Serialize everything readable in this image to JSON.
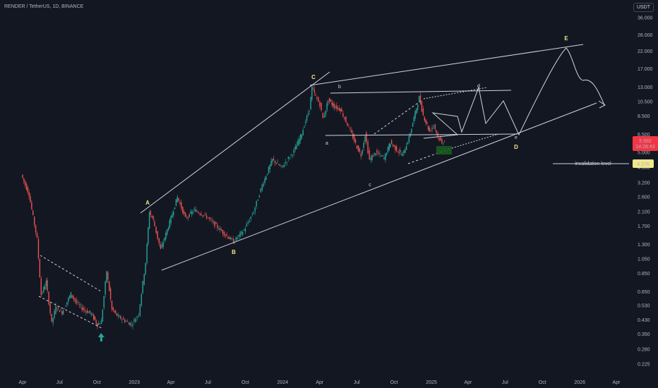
{
  "header": {
    "title": "RENDER / TetherUS, 1D, BINANCE",
    "currency": "USDT"
  },
  "chart_data": {
    "type": "line",
    "title": "RENDER / TetherUS, 1D, BINANCE",
    "yscale": "log",
    "grid": false,
    "y_ticks": [
      "36.000",
      "28.000",
      "22.000",
      "17.000",
      "13.000",
      "10.500",
      "8.500",
      "6.500",
      "5.000",
      "4.000",
      "3.200",
      "2.600",
      "2.100",
      "1.700",
      "1.300",
      "1.050",
      "0.850",
      "0.650",
      "0.530",
      "0.430",
      "0.350",
      "0.280",
      "0.225"
    ],
    "x_ticks": [
      "Apr",
      "Jul",
      "Oct",
      "2023",
      "Apr",
      "Jul",
      "Oct",
      "2024",
      "Apr",
      "Jul",
      "Oct",
      "2025",
      "Apr",
      "Jul",
      "Oct",
      "2026",
      "Apr"
    ],
    "current_price": "5.992",
    "countdown": "14:28:43",
    "invalidation": {
      "label": "invalidation level",
      "price": "4.276"
    },
    "wave_labels": [
      "A",
      "B",
      "C",
      "D",
      "E"
    ],
    "subwave_labels": [
      "a",
      "b",
      "c",
      "d",
      "e"
    ],
    "series": [
      {
        "values": [
          [
            "2022-04-01",
            3.6
          ],
          [
            "2022-04-20",
            2.7
          ],
          [
            "2022-05-10",
            1.4
          ],
          [
            "2022-05-20",
            0.62
          ],
          [
            "2022-06-01",
            0.75
          ],
          [
            "2022-06-15",
            0.41
          ],
          [
            "2022-06-25",
            0.52
          ],
          [
            "2022-07-10",
            0.48
          ],
          [
            "2022-08-01",
            0.63
          ],
          [
            "2022-08-15",
            0.55
          ],
          [
            "2022-09-01",
            0.5
          ],
          [
            "2022-09-20",
            0.47
          ],
          [
            "2022-10-05",
            0.4
          ],
          [
            "2022-10-15",
            0.42
          ],
          [
            "2022-10-28",
            0.88
          ],
          [
            "2022-11-10",
            0.5
          ],
          [
            "2022-11-25",
            0.45
          ],
          [
            "2022-12-15",
            0.42
          ],
          [
            "2022-12-28",
            0.4
          ],
          [
            "2023-01-15",
            0.47
          ],
          [
            "2023-02-01",
            1.0
          ],
          [
            "2023-02-10",
            2.1
          ],
          [
            "2023-02-20",
            1.85
          ],
          [
            "2023-03-10",
            1.2
          ],
          [
            "2023-04-01",
            1.8
          ],
          [
            "2023-04-20",
            2.6
          ],
          [
            "2023-05-10",
            1.9
          ],
          [
            "2023-06-01",
            2.15
          ],
          [
            "2023-07-01",
            1.95
          ],
          [
            "2023-08-10",
            1.55
          ],
          [
            "2023-09-05",
            1.35
          ],
          [
            "2023-10-01",
            1.6
          ],
          [
            "2023-10-25",
            2.1
          ],
          [
            "2023-11-15",
            3.1
          ],
          [
            "2023-12-10",
            4.5
          ],
          [
            "2024-01-01",
            4.0
          ],
          [
            "2024-02-01",
            5.1
          ],
          [
            "2024-02-20",
            6.6
          ],
          [
            "2024-03-10",
            9.5
          ],
          [
            "2024-03-16",
            12.9
          ],
          [
            "2024-03-25",
            11.4
          ],
          [
            "2024-04-05",
            10.1
          ],
          [
            "2024-04-13",
            8.2
          ],
          [
            "2024-04-25",
            10.8
          ],
          [
            "2024-05-10",
            9.8
          ],
          [
            "2024-05-25",
            9.4
          ],
          [
            "2024-06-15",
            7.2
          ],
          [
            "2024-07-05",
            5.4
          ],
          [
            "2024-07-15",
            4.8
          ],
          [
            "2024-07-25",
            6.5
          ],
          [
            "2024-08-05",
            4.5
          ],
          [
            "2024-08-20",
            5.0
          ],
          [
            "2024-09-10",
            4.6
          ],
          [
            "2024-09-25",
            5.8
          ],
          [
            "2024-10-10",
            5.2
          ],
          [
            "2024-10-25",
            4.8
          ],
          [
            "2024-11-10",
            6.2
          ],
          [
            "2024-11-25",
            8.9
          ],
          [
            "2024-12-05",
            11.2
          ],
          [
            "2024-12-15",
            8.6
          ],
          [
            "2024-12-30",
            6.8
          ],
          [
            "2025-01-10",
            7.5
          ],
          [
            "2025-01-20",
            6.3
          ],
          [
            "2025-01-30",
            5.7
          ],
          [
            "2025-02-05",
            5.99
          ]
        ]
      }
    ]
  }
}
